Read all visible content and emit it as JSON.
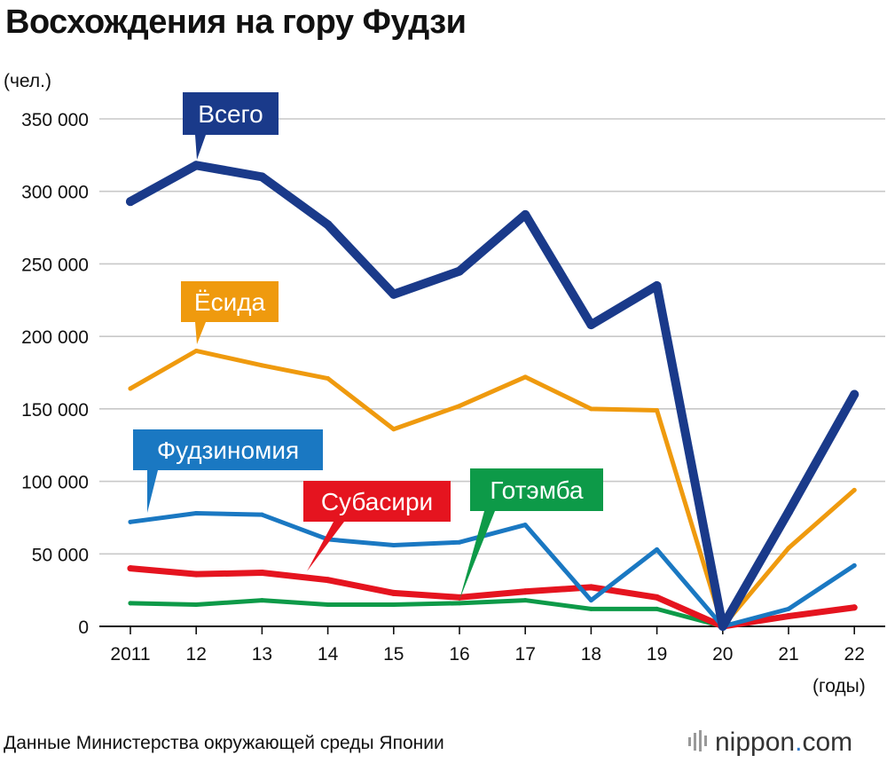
{
  "header": {
    "title": "Восхождения на гору Фудзи"
  },
  "axes": {
    "y_unit": "(чел.)",
    "x_unit": "(годы)"
  },
  "footer": {
    "source": "Данные Министерства окружающей среды Японии",
    "brand_name": "nippon",
    "brand_dot": ".",
    "brand_suffix": "com"
  },
  "chart_data": {
    "type": "line",
    "title": "Восхождения на гору Фудзи",
    "xlabel": "(годы)",
    "ylabel": "(чел.)",
    "categories": [
      "2011",
      "12",
      "13",
      "14",
      "15",
      "16",
      "17",
      "18",
      "19",
      "20",
      "21",
      "22"
    ],
    "ylim": [
      0,
      350000
    ],
    "yticks": [
      0,
      50000,
      100000,
      150000,
      200000,
      250000,
      300000,
      350000
    ],
    "ytick_labels": [
      "0",
      "50 000",
      "100 000",
      "150 000",
      "200 000",
      "250 000",
      "300 000",
      "350 000"
    ],
    "grid": true,
    "series": [
      {
        "name": "Всего",
        "color": "#1a3a8a",
        "values": [
          293000,
          318000,
          310000,
          277000,
          229000,
          245000,
          284000,
          208000,
          235000,
          0,
          79000,
          160000
        ]
      },
      {
        "name": "Ёсида",
        "color": "#ef9a0e",
        "values": [
          164000,
          190000,
          180000,
          171000,
          136000,
          152000,
          172000,
          150000,
          149000,
          0,
          54000,
          94000
        ]
      },
      {
        "name": "Фудзиномия",
        "color": "#1a78c2",
        "values": [
          72000,
          78000,
          77000,
          60000,
          56000,
          58000,
          70000,
          18000,
          53000,
          0,
          12000,
          42000
        ]
      },
      {
        "name": "Субасири",
        "color": "#e5141f",
        "values": [
          40000,
          36000,
          37000,
          32000,
          23000,
          20000,
          24000,
          27000,
          20000,
          0,
          7000,
          13000
        ]
      },
      {
        "name": "Готэмба",
        "color": "#0d9a48",
        "values": [
          16000,
          15000,
          18000,
          15000,
          15000,
          16000,
          18000,
          12000,
          12000,
          0,
          7000,
          13000
        ]
      }
    ]
  }
}
